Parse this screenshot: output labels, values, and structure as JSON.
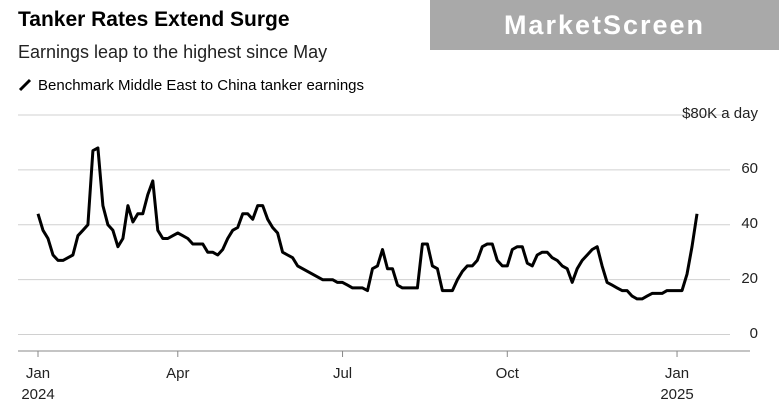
{
  "chart_data": {
    "type": "line",
    "title": "Tanker Rates Extend Surge",
    "subtitle": "Earnings leap to the highest since May",
    "watermark": "MarketScreen",
    "categories": [
      "Jan 2024",
      null,
      null,
      null,
      null,
      null,
      null,
      null,
      null,
      null,
      null,
      null,
      null,
      null,
      null,
      null,
      null,
      null,
      null,
      null,
      null,
      null,
      null,
      null,
      null,
      null,
      null,
      null,
      "Apr",
      null,
      null,
      null,
      null,
      null,
      null,
      null,
      null,
      null,
      null,
      null,
      null,
      null,
      null,
      null,
      null,
      null,
      null,
      null,
      null,
      null,
      null,
      null,
      null,
      null,
      null,
      null,
      null,
      null,
      null,
      null,
      null,
      "Jul",
      null,
      null,
      null,
      null,
      null,
      null,
      null,
      null,
      null,
      null,
      null,
      null,
      null,
      null,
      null,
      null,
      null,
      null,
      null,
      null,
      null,
      null,
      null,
      null,
      null,
      null,
      null,
      null,
      null,
      null,
      null,
      null,
      "Oct",
      null,
      null,
      null,
      null,
      null,
      null,
      null,
      null,
      null,
      null,
      null,
      null,
      null,
      null,
      null,
      null,
      null,
      null,
      null,
      null,
      null,
      null,
      null,
      null,
      null,
      null,
      null,
      null,
      null,
      null,
      null,
      null,
      null,
      "Jan 2025",
      null,
      null,
      null,
      null
    ],
    "series": [
      {
        "name": "Benchmark Middle East to China tanker earnings",
        "color": "#000000",
        "values": [
          44,
          38,
          35,
          29,
          27,
          27,
          28,
          29,
          36,
          38,
          40,
          67,
          68,
          47,
          40,
          38,
          32,
          35,
          47,
          41,
          44,
          44,
          51,
          56,
          38,
          35,
          35,
          36,
          37,
          36,
          35,
          33,
          33,
          33,
          30,
          30,
          29,
          31,
          35,
          38,
          39,
          44,
          44,
          42,
          47,
          47,
          42,
          39,
          37,
          30,
          29,
          28,
          25,
          24,
          23,
          22,
          21,
          20,
          20,
          20,
          19,
          19,
          18,
          17,
          17,
          17,
          16,
          24,
          25,
          31,
          24,
          24,
          18,
          17,
          17,
          17,
          17,
          33,
          33,
          25,
          24,
          16,
          16,
          16,
          20,
          23,
          25,
          25,
          27,
          32,
          33,
          33,
          27,
          25,
          25,
          31,
          32,
          32,
          26,
          25,
          29,
          30,
          30,
          28,
          27,
          25,
          24,
          19,
          24,
          27,
          29,
          31,
          32,
          25,
          19,
          18,
          17,
          16,
          16,
          14,
          13,
          13,
          14,
          15,
          15,
          15,
          16,
          16,
          16,
          16,
          22,
          32,
          44
        ]
      }
    ],
    "ylim": [
      -6,
      80
    ],
    "yticks": [
      0,
      20,
      40,
      60,
      {
        "value": 80,
        "label": "$80K a day"
      }
    ],
    "grid": true
  }
}
